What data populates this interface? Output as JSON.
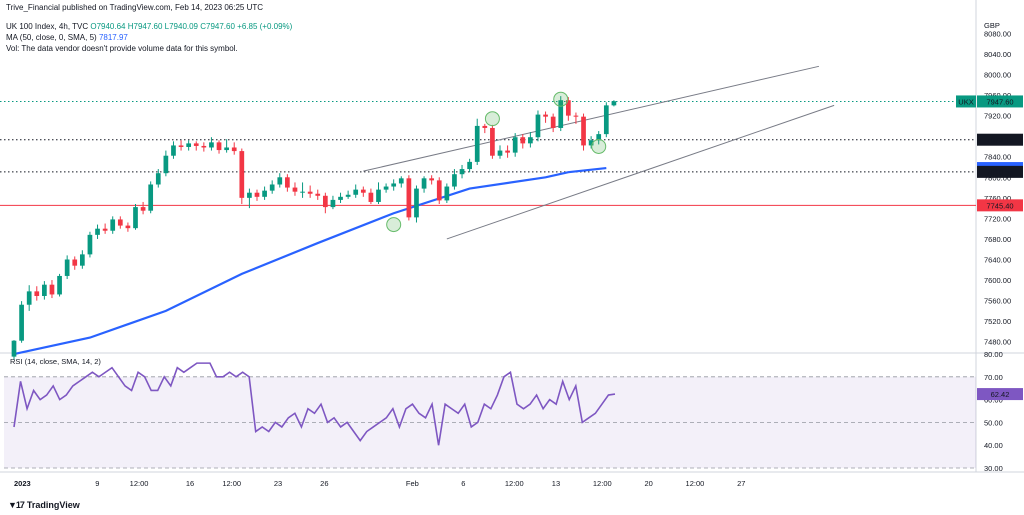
{
  "header": {
    "publisher": "Trive_Financial published on TradingView.com, Feb 14, 2023 06:25 UTC",
    "symbol": "UK 100 Index, 4h, TVC",
    "ohlc": "O7940.64  H7947.60  L7940.09  C7947.60  +6.85 (+0.09%)",
    "ma_label": "MA (50, close, 0, SMA, 5)",
    "ma_value": "7817.97",
    "vol_note": "Vol: The data vendor doesn't provide volume data for this symbol."
  },
  "currency": "GBP",
  "brand": "TradingView",
  "chart_data": [
    {
      "type": "candlestick",
      "ylim": [
        7460,
        8110
      ],
      "y_ticks": [
        7480,
        7520,
        7560,
        7600,
        7640,
        7680,
        7720,
        7760,
        7800,
        7840,
        7880,
        7920,
        7960,
        8000,
        8040,
        8080
      ],
      "x_ticks": [
        "2023",
        "9",
        "12:00",
        "16",
        "12:00",
        "23",
        "26",
        "Feb",
        "6",
        "12:00",
        "13",
        "12:00",
        "20",
        "12:00",
        "27"
      ],
      "candles": [
        [
          7451,
          7482,
          7445,
          7483
        ],
        [
          7482,
          7552,
          7478,
          7559
        ],
        [
          7552,
          7578,
          7540,
          7590
        ],
        [
          7578,
          7569,
          7560,
          7588
        ],
        [
          7569,
          7591,
          7562,
          7598
        ],
        [
          7591,
          7572,
          7565,
          7600
        ],
        [
          7572,
          7608,
          7568,
          7612
        ],
        [
          7608,
          7640,
          7602,
          7648
        ],
        [
          7640,
          7628,
          7620,
          7646
        ],
        [
          7628,
          7650,
          7622,
          7658
        ],
        [
          7650,
          7688,
          7644,
          7694
        ],
        [
          7688,
          7700,
          7680,
          7708
        ],
        [
          7700,
          7696,
          7690,
          7710
        ],
        [
          7696,
          7718,
          7690,
          7724
        ],
        [
          7718,
          7706,
          7700,
          7724
        ],
        [
          7706,
          7701,
          7694,
          7712
        ],
        [
          7701,
          7742,
          7698,
          7748
        ],
        [
          7742,
          7735,
          7728,
          7752
        ],
        [
          7735,
          7786,
          7730,
          7792
        ],
        [
          7786,
          7808,
          7780,
          7816
        ],
        [
          7808,
          7842,
          7802,
          7852
        ],
        [
          7842,
          7862,
          7836,
          7870
        ],
        [
          7862,
          7859,
          7852,
          7872
        ],
        [
          7859,
          7866,
          7852,
          7872
        ],
        [
          7866,
          7861,
          7852,
          7870
        ],
        [
          7861,
          7858,
          7850,
          7868
        ],
        [
          7858,
          7868,
          7852,
          7878
        ],
        [
          7868,
          7853,
          7846,
          7872
        ],
        [
          7853,
          7858,
          7848,
          7874
        ],
        [
          7858,
          7851,
          7844,
          7868
        ],
        [
          7851,
          7760,
          7748,
          7856
        ],
        [
          7760,
          7770,
          7740,
          7778
        ],
        [
          7770,
          7762,
          7754,
          7776
        ],
        [
          7762,
          7774,
          7756,
          7782
        ],
        [
          7774,
          7786,
          7768,
          7794
        ],
        [
          7786,
          7800,
          7780,
          7808
        ],
        [
          7800,
          7780,
          7772,
          7806
        ],
        [
          7780,
          7772,
          7764,
          7790
        ],
        [
          7772,
          7772,
          7760,
          7790
        ],
        [
          7772,
          7768,
          7760,
          7784
        ],
        [
          7768,
          7764,
          7756,
          7776
        ],
        [
          7764,
          7742,
          7730,
          7770
        ],
        [
          7742,
          7756,
          7738,
          7764
        ],
        [
          7756,
          7762,
          7750,
          7770
        ],
        [
          7762,
          7766,
          7758,
          7774
        ],
        [
          7766,
          7776,
          7760,
          7786
        ],
        [
          7776,
          7770,
          7762,
          7782
        ],
        [
          7770,
          7752,
          7748,
          7778
        ],
        [
          7752,
          7776,
          7748,
          7790
        ],
        [
          7776,
          7782,
          7770,
          7788
        ],
        [
          7782,
          7788,
          7774,
          7796
        ],
        [
          7788,
          7798,
          7780,
          7802
        ],
        [
          7798,
          7722,
          7716,
          7804
        ],
        [
          7722,
          7778,
          7712,
          7784
        ],
        [
          7778,
          7798,
          7770,
          7802
        ],
        [
          7798,
          7794,
          7786,
          7804
        ],
        [
          7794,
          7755,
          7748,
          7800
        ],
        [
          7755,
          7782,
          7750,
          7788
        ],
        [
          7782,
          7806,
          7776,
          7816
        ],
        [
          7806,
          7816,
          7798,
          7824
        ],
        [
          7816,
          7830,
          7810,
          7836
        ],
        [
          7830,
          7900,
          7824,
          7914
        ],
        [
          7900,
          7896,
          7886,
          7904
        ],
        [
          7896,
          7842,
          7836,
          7902
        ],
        [
          7842,
          7852,
          7836,
          7862
        ],
        [
          7852,
          7848,
          7838,
          7862
        ],
        [
          7848,
          7878,
          7840,
          7886
        ],
        [
          7878,
          7866,
          7856,
          7884
        ],
        [
          7866,
          7878,
          7858,
          7888
        ],
        [
          7878,
          7922,
          7870,
          7930
        ],
        [
          7922,
          7918,
          7906,
          7928
        ],
        [
          7918,
          7896,
          7888,
          7924
        ],
        [
          7896,
          7950,
          7890,
          7958
        ],
        [
          7950,
          7920,
          7910,
          7956
        ],
        [
          7920,
          7918,
          7904,
          7926
        ],
        [
          7918,
          7862,
          7852,
          7924
        ],
        [
          7862,
          7872,
          7856,
          7880
        ],
        [
          7872,
          7884,
          7864,
          7890
        ],
        [
          7884,
          7940,
          7878,
          7946
        ],
        [
          7940,
          7948,
          7938,
          7950
        ]
      ],
      "ma50": [
        [
          0,
          7456
        ],
        [
          10,
          7488
        ],
        [
          20,
          7540
        ],
        [
          30,
          7612
        ],
        [
          40,
          7672
        ],
        [
          50,
          7730
        ],
        [
          60,
          7778
        ],
        [
          70,
          7800
        ],
        [
          73,
          7810
        ],
        [
          78,
          7818
        ]
      ],
      "price_labels": [
        {
          "label": "7947.60",
          "value": 7947.6,
          "color": "#089981",
          "tag": "UKX"
        },
        {
          "label": "7873.15",
          "value": 7873.15,
          "color": "#131722"
        },
        {
          "label": "7817.97",
          "value": 7817.97,
          "color": "#2962ff"
        },
        {
          "label": "7810.55",
          "value": 7810.55,
          "color": "#131722"
        },
        {
          "label": "7745.40",
          "value": 7745.4,
          "color": "#f23645"
        }
      ],
      "horizontal_lines": [
        {
          "value": 7947.6,
          "style": "dotted",
          "color": "#089981"
        },
        {
          "value": 7873.15,
          "style": "dotted",
          "color": "#131722"
        },
        {
          "value": 7810.55,
          "style": "dotted",
          "color": "#131722"
        },
        {
          "value": 7745.4,
          "style": "solid",
          "color": "#f23645"
        }
      ],
      "trend_lines": [
        {
          "from": [
            46,
            7812
          ],
          "to": [
            106,
            8016
          ]
        },
        {
          "from": [
            57,
            7680
          ],
          "to": [
            108,
            7940
          ]
        }
      ],
      "circles": [
        [
          63,
          7914
        ],
        [
          72,
          7952
        ],
        [
          50,
          7708
        ],
        [
          77,
          7860
        ]
      ],
      "colors": {
        "up": "#089981",
        "down": "#f23645",
        "ma": "#2962ff"
      }
    },
    {
      "type": "line",
      "title": "RSI (14, close, SMA, 14, 2)",
      "value_label": "62.42",
      "ylim": [
        30,
        80
      ],
      "y_ticks": [
        30,
        40,
        50,
        60,
        70,
        80
      ],
      "band": [
        30,
        70
      ],
      "series": [
        {
          "values": [
            48,
            68,
            56,
            64,
            60,
            62,
            66,
            60,
            62,
            66,
            68,
            70,
            72,
            70,
            72,
            74,
            70,
            66,
            64,
            72,
            70,
            64,
            64,
            70,
            66,
            74,
            72,
            74,
            76,
            76,
            76,
            70,
            70,
            72,
            70,
            72,
            70,
            46,
            48,
            46,
            50,
            48,
            52,
            54,
            48,
            56,
            54,
            58,
            50,
            52,
            48,
            50,
            46,
            42,
            46,
            48,
            50,
            52,
            56,
            48,
            56,
            58,
            54,
            52,
            58,
            40,
            58,
            56,
            54,
            58,
            48,
            50,
            58,
            56,
            62,
            70,
            72,
            58,
            56,
            58,
            62,
            56,
            60,
            58,
            68,
            60,
            66,
            50,
            52,
            54,
            58,
            62,
            62.42
          ],
          "color": "#7e57c2"
        }
      ]
    }
  ]
}
